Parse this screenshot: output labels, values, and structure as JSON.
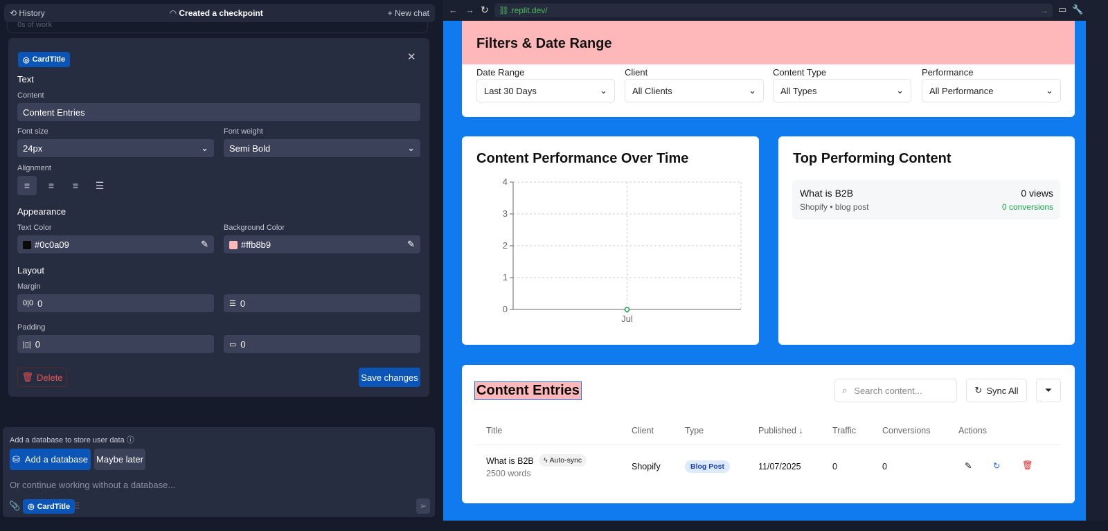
{
  "left_panel": {
    "header": {
      "history": "History",
      "status": "Created a checkpoint",
      "new_chat": "New chat"
    },
    "faded_item": "0s of work",
    "editor": {
      "component_chip": "CardTitle",
      "text_section": "Text",
      "content_label": "Content",
      "content_value": "Content Entries",
      "font_size_label": "Font size",
      "font_size_value": "24px",
      "font_weight_label": "Font weight",
      "font_weight_value": "Semi Bold",
      "alignment_label": "Alignment",
      "alignment_selected": "left",
      "appearance_section": "Appearance",
      "text_color_label": "Text Color",
      "text_color_value": "#0c0a09",
      "bg_color_label": "Background Color",
      "bg_color_value": "#ffb8b9",
      "layout_section": "Layout",
      "margin_label": "Margin",
      "margin_x": "0",
      "margin_y": "0",
      "padding_label": "Padding",
      "padding_x": "0",
      "padding_y": "0",
      "delete": "Delete",
      "save": "Save changes"
    },
    "db_prompt": {
      "text": "Add a database to store user data",
      "add": "Add a database",
      "later": "Maybe later",
      "placeholder": "Or continue working without a database...",
      "chip": "CardTitle"
    }
  },
  "browser": {
    "url": ".replit.dev/"
  },
  "dashboard": {
    "filters": {
      "title": "Filters & Date Range",
      "fields": [
        {
          "label": "Date Range",
          "value": "Last 30 Days"
        },
        {
          "label": "Client",
          "value": "All Clients"
        },
        {
          "label": "Content Type",
          "value": "All Types"
        },
        {
          "label": "Performance",
          "value": "All Performance"
        }
      ]
    },
    "perf_title": "Content Performance Over Time",
    "top": {
      "title": "Top Performing Content",
      "item_title": "What is B2B",
      "item_meta": "Shopify • blog post",
      "views": "0 views",
      "conversions": "0 conversions"
    },
    "entries": {
      "title": "Content Entries",
      "search_placeholder": "Search content...",
      "sync": "Sync All",
      "columns": [
        "Title",
        "Client",
        "Type",
        "Published ↓",
        "Traffic",
        "Conversions",
        "Actions"
      ],
      "rows": [
        {
          "title": "What is B2B",
          "badge": "Auto-sync",
          "words": "2500 words",
          "client": "Shopify",
          "type": "Blog Post",
          "published": "11/07/2025",
          "traffic": "0",
          "conversions": "0"
        }
      ]
    }
  },
  "chart_data": {
    "type": "line",
    "categories": [
      "Jul"
    ],
    "values": [
      0
    ],
    "ylim": [
      0,
      4
    ],
    "yticks": [
      "0",
      "1",
      "2",
      "3",
      "4"
    ],
    "grid": true,
    "color": "#16a34a"
  }
}
